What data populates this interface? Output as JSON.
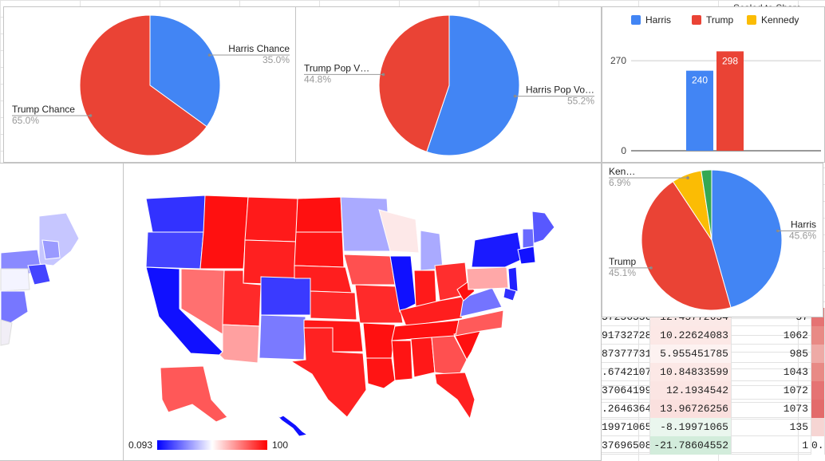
{
  "sheet": {
    "corner_label": "Scaled to Share",
    "rows": [
      {
        "a": "57256556",
        "b": "12.45772654",
        "c": "57",
        "d": "",
        "bcolor": "#fbe9e7",
        "dcolor": "#e57373"
      },
      {
        "a": "91732728",
        "b": "10.22624083",
        "c": "1062",
        "d": "",
        "bcolor": "#fce8e6",
        "dcolor": "#e88a85"
      },
      {
        "a": "87377731",
        "b": "5.955451785",
        "c": "985",
        "d": "",
        "bcolor": "#fdf2f1",
        "dcolor": "#eeaaa6"
      },
      {
        "a": ".6742107",
        "b": "10.84833599",
        "c": "1043",
        "d": "",
        "bcolor": "#fce8e6",
        "dcolor": "#e88a85"
      },
      {
        "a": "37064199",
        "b": "12.1934542",
        "c": "1072",
        "d": "",
        "bcolor": "#fbe5e3",
        "dcolor": "#e57373"
      },
      {
        "a": ".2646364",
        "b": "13.96726256",
        "c": "1073",
        "d": "",
        "bcolor": "#fae0de",
        "dcolor": "#e36b6b"
      },
      {
        "a": "19971065",
        "b": "-8.19971065",
        "c": "135",
        "d": "",
        "bcolor": "#eaf6ee",
        "dcolor": "#f6d5d3"
      },
      {
        "a": "37696508",
        "b": "-21.78604552",
        "c": "1",
        "d": "0.",
        "bcolor": "#d2ecdb",
        "dcolor": "#ffffff"
      }
    ]
  },
  "chart_data": [
    {
      "type": "pie",
      "slices": [
        {
          "label": "Harris Chance",
          "value": 35.0,
          "pct_label": "35.0%",
          "color": "#4285f4"
        },
        {
          "label": "Trump Chance",
          "value": 65.0,
          "pct_label": "65.0%",
          "color": "#ea4335"
        }
      ]
    },
    {
      "type": "pie",
      "slices": [
        {
          "label": "Harris Pop Vo…",
          "value": 55.2,
          "pct_label": "55.2%",
          "color": "#4285f4"
        },
        {
          "label": "Trump Pop V…",
          "value": 44.8,
          "pct_label": "44.8%",
          "color": "#ea4335"
        }
      ]
    },
    {
      "type": "bar",
      "legend": [
        {
          "name": "Harris",
          "color": "#4285f4"
        },
        {
          "name": "Trump",
          "color": "#ea4335"
        },
        {
          "name": "Kennedy",
          "color": "#fbbc04"
        }
      ],
      "legend_position": "top",
      "series": [
        {
          "name": "Harris",
          "values": [
            240
          ],
          "color": "#4285f4"
        },
        {
          "name": "Trump",
          "values": [
            298
          ],
          "color": "#ea4335"
        }
      ],
      "yticks": [
        0,
        270
      ],
      "ylim": [
        0,
        330
      ],
      "grid": true
    },
    {
      "type": "pie",
      "slices": [
        {
          "label": "Harris",
          "value": 45.6,
          "pct_label": "45.6%",
          "color": "#4285f4"
        },
        {
          "label": "Trump",
          "value": 45.1,
          "pct_label": "45.1%",
          "color": "#ea4335"
        },
        {
          "label": "Ken…",
          "value": 6.9,
          "pct_label": "6.9%",
          "color": "#fbbc04"
        },
        {
          "label": "",
          "value": 2.4,
          "pct_label": "",
          "color": "#34a853"
        }
      ]
    },
    {
      "type": "heatmap",
      "kind": "choropleth",
      "scale_min": "0.093",
      "scale_max": "100",
      "scale_colors": [
        "#0000ff",
        "#ffffff",
        "#ff0000"
      ]
    }
  ]
}
